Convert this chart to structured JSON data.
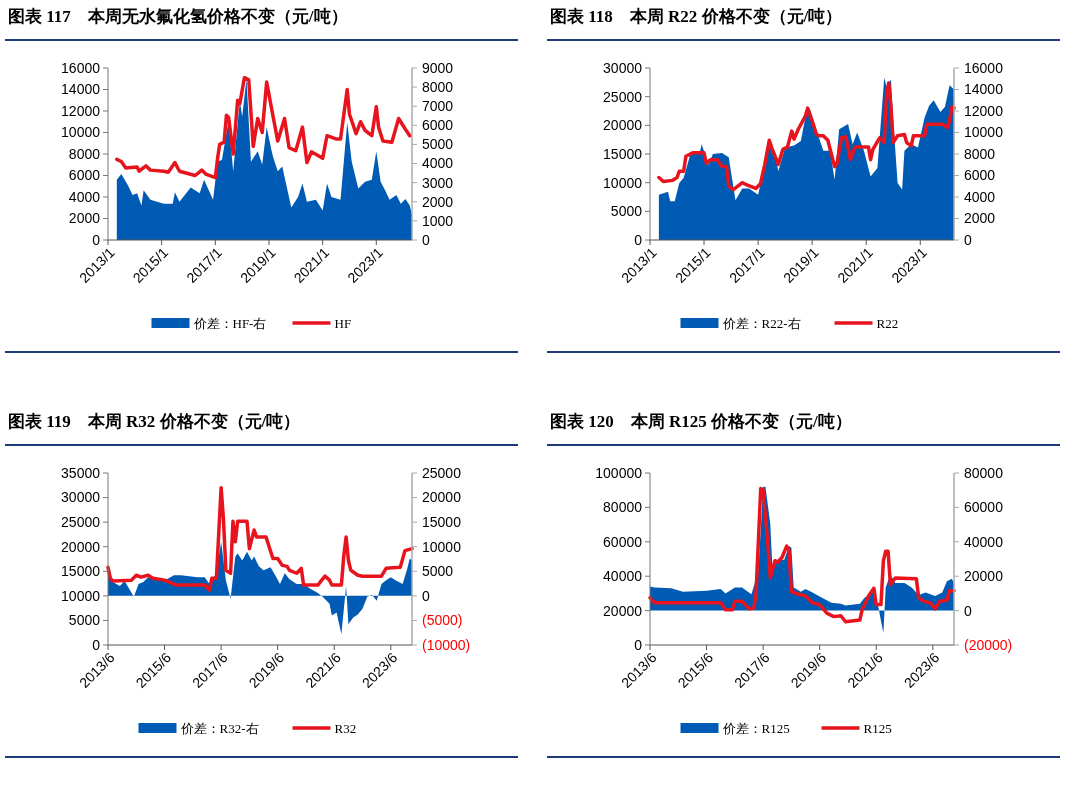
{
  "chart_data": [
    {
      "type": "line",
      "title": "图表 117　本周无水氟化氢价格不变（元/吨）",
      "legend": "bottom",
      "xlim": [
        "2013-01",
        "2024-05"
      ],
      "xticks": [
        {
          "value": "2013-01",
          "label": "2013/1"
        },
        {
          "value": "2015-01",
          "label": "2015/1"
        },
        {
          "value": "2017-01",
          "label": "2017/1"
        },
        {
          "value": "2019-01",
          "label": "2019/1"
        },
        {
          "value": "2021-01",
          "label": "2021/1"
        },
        {
          "value": "2023-01",
          "label": "2023/1"
        }
      ],
      "ylim": [
        0,
        16000
      ],
      "yticks": [
        0,
        2000,
        4000,
        6000,
        8000,
        10000,
        12000,
        14000,
        16000
      ],
      "y2lim": [
        0,
        9000
      ],
      "y2ticks": [
        0,
        1000,
        2000,
        3000,
        4000,
        5000,
        6000,
        7000,
        8000,
        9000
      ],
      "series": [
        {
          "name": "价差：HF-右",
          "type": "area",
          "axis": "y2",
          "color": "#005bb5",
          "x": [
            "2013-05",
            "2013-07",
            "2013-10",
            "2013-12",
            "2014-02",
            "2014-04",
            "2014-05",
            "2014-08",
            "2015-02",
            "2015-06",
            "2015-07",
            "2015-09",
            "2016-02",
            "2016-06",
            "2016-08",
            "2016-12",
            "2017-02",
            "2017-04",
            "2017-07",
            "2017-09",
            "2017-12",
            "2018-01",
            "2018-03",
            "2018-05",
            "2018-08",
            "2018-10",
            "2018-12",
            "2019-02",
            "2019-03",
            "2019-05",
            "2019-07",
            "2019-11",
            "2020-02",
            "2020-04",
            "2020-06",
            "2020-10",
            "2021-01",
            "2021-03",
            "2021-05",
            "2021-09",
            "2021-12",
            "2022-02",
            "2022-05",
            "2022-08",
            "2022-11",
            "2023-01",
            "2023-03",
            "2023-05",
            "2023-07",
            "2023-10",
            "2023-12",
            "2024-02",
            "2024-04",
            "2024-05"
          ],
          "values": [
            3150,
            3450,
            2850,
            2350,
            2450,
            1800,
            2600,
            2100,
            1900,
            1900,
            2500,
            2000,
            2750,
            2450,
            3150,
            2100,
            4100,
            4200,
            6250,
            3600,
            7300,
            6450,
            8400,
            4100,
            4650,
            3950,
            5900,
            4750,
            4300,
            3600,
            3850,
            1700,
            2250,
            2950,
            2000,
            2100,
            1550,
            2950,
            2250,
            2100,
            6150,
            4100,
            2700,
            3050,
            3150,
            4650,
            3050,
            2600,
            2100,
            2350,
            1900,
            2150,
            1800,
            1300
          ]
        },
        {
          "name": "HF",
          "type": "line",
          "color": "#e8141d",
          "x": [
            "2013-05",
            "2013-07",
            "2013-09",
            "2014-02",
            "2014-03",
            "2014-06",
            "2014-08",
            "2015-02",
            "2015-04",
            "2015-07",
            "2015-09",
            "2016-04",
            "2016-07",
            "2016-09",
            "2017-01",
            "2017-02",
            "2017-03",
            "2017-05",
            "2017-06",
            "2017-07",
            "2017-09",
            "2017-11",
            "2017-12",
            "2018-02",
            "2018-04",
            "2018-06",
            "2018-08",
            "2018-10",
            "2018-12",
            "2019-02",
            "2019-05",
            "2019-08",
            "2019-10",
            "2020-01",
            "2020-04",
            "2020-06",
            "2020-08",
            "2021-01",
            "2021-03",
            "2021-07",
            "2021-09",
            "2021-12",
            "2022-01",
            "2022-04",
            "2022-06",
            "2022-08",
            "2022-11",
            "2023-01",
            "2023-02",
            "2023-04",
            "2023-08",
            "2023-11",
            "2024-02",
            "2024-04"
          ],
          "values": [
            7500,
            7300,
            6700,
            6800,
            6400,
            6900,
            6500,
            6400,
            6300,
            7200,
            6400,
            6000,
            6500,
            6100,
            5800,
            7600,
            8900,
            9100,
            11600,
            11400,
            8000,
            13000,
            12700,
            15100,
            14900,
            8700,
            11300,
            10000,
            14700,
            12400,
            9200,
            11300,
            8600,
            8300,
            10500,
            7200,
            8200,
            7600,
            9700,
            9400,
            9400,
            14000,
            11700,
            9900,
            11000,
            10200,
            9700,
            12400,
            10500,
            9200,
            9100,
            11300,
            10300,
            9700
          ]
        }
      ]
    },
    {
      "type": "line",
      "title": "图表 118　本周 R22 价格不变（元/吨）",
      "legend": "bottom",
      "xlim": [
        "2013-01",
        "2024-04"
      ],
      "xticks": [
        {
          "value": "2013-01",
          "label": "2013/1"
        },
        {
          "value": "2015-01",
          "label": "2015/1"
        },
        {
          "value": "2017-01",
          "label": "2017/1"
        },
        {
          "value": "2019-01",
          "label": "2019/1"
        },
        {
          "value": "2021-01",
          "label": "2021/1"
        },
        {
          "value": "2023-01",
          "label": "2023/1"
        }
      ],
      "ylim": [
        0,
        30000
      ],
      "yticks": [
        0,
        5000,
        10000,
        15000,
        20000,
        25000,
        30000
      ],
      "y2lim": [
        0,
        16000
      ],
      "y2ticks": [
        0,
        2000,
        4000,
        6000,
        8000,
        10000,
        12000,
        14000,
        16000
      ],
      "series": [
        {
          "name": "价差：R22-右",
          "type": "area",
          "axis": "y2",
          "color": "#005bb5",
          "x": [
            "2013-05",
            "2013-09",
            "2013-10",
            "2013-12",
            "2014-02",
            "2014-04",
            "2014-07",
            "2014-11",
            "2014-12",
            "2015-03",
            "2015-05",
            "2015-09",
            "2015-12",
            "2016-03",
            "2016-06",
            "2016-09",
            "2017-01",
            "2017-04",
            "2017-06",
            "2017-09",
            "2017-10",
            "2018-01",
            "2018-05",
            "2018-08",
            "2018-10",
            "2018-12",
            "2019-03",
            "2019-06",
            "2019-09",
            "2019-11",
            "2020-01",
            "2020-05",
            "2020-07",
            "2020-09",
            "2020-12",
            "2021-03",
            "2021-06",
            "2021-09",
            "2021-10",
            "2021-12",
            "2022-01",
            "2022-03",
            "2022-05",
            "2022-06",
            "2022-09",
            "2022-12",
            "2023-03",
            "2023-05",
            "2023-07",
            "2023-10",
            "2023-12",
            "2024-02",
            "2024-04"
          ],
          "values": [
            4200,
            4500,
            3600,
            3600,
            5300,
            5800,
            8000,
            8000,
            8900,
            7000,
            8000,
            8100,
            7700,
            3700,
            4800,
            4800,
            4200,
            7000,
            9200,
            7500,
            6400,
            8600,
            8800,
            9200,
            11400,
            12200,
            10200,
            8300,
            8300,
            5600,
            10300,
            10800,
            8900,
            10000,
            8300,
            5900,
            6700,
            15100,
            14300,
            14900,
            11100,
            5300,
            4700,
            8300,
            8900,
            8600,
            11400,
            12500,
            13000,
            11900,
            12400,
            14400,
            14000
          ]
        },
        {
          "name": "R22",
          "type": "line",
          "color": "#e8141d",
          "x": [
            "2013-05",
            "2013-07",
            "2013-11",
            "2014-01",
            "2014-02",
            "2014-04",
            "2014-05",
            "2014-08",
            "2015-01",
            "2015-02",
            "2015-04",
            "2015-07",
            "2015-09",
            "2015-11",
            "2015-12",
            "2016-02",
            "2016-06",
            "2016-08",
            "2016-12",
            "2017-02",
            "2017-04",
            "2017-06",
            "2017-07",
            "2017-10",
            "2017-12",
            "2018-02",
            "2018-04",
            "2018-05",
            "2018-07",
            "2018-10",
            "2018-11",
            "2019-01",
            "2019-03",
            "2019-04",
            "2019-06",
            "2019-08",
            "2019-11",
            "2019-12",
            "2020-02",
            "2020-04",
            "2020-06",
            "2020-08",
            "2020-11",
            "2021-02",
            "2021-03",
            "2021-04",
            "2021-07",
            "2021-09",
            "2021-10",
            "2021-11",
            "2021-12",
            "2022-01",
            "2022-03",
            "2022-06",
            "2022-07",
            "2022-09",
            "2022-10",
            "2023-03",
            "2023-04",
            "2023-11",
            "2024-01",
            "2024-02",
            "2024-03",
            "2024-04"
          ],
          "values": [
            10900,
            10200,
            10400,
            10900,
            12000,
            12000,
            14600,
            15200,
            15200,
            13400,
            14000,
            14000,
            12800,
            12800,
            9400,
            8800,
            10000,
            9600,
            9000,
            9800,
            13200,
            17400,
            16200,
            13200,
            15800,
            16200,
            19000,
            17600,
            19400,
            21600,
            23000,
            20800,
            18400,
            18200,
            18200,
            17400,
            12800,
            13200,
            17800,
            18000,
            14000,
            16200,
            16200,
            16200,
            14000,
            15800,
            17800,
            17000,
            25000,
            27400,
            23200,
            17000,
            18200,
            18400,
            17000,
            16400,
            18200,
            18200,
            20200,
            20200,
            19600,
            20800,
            23200,
            23000
          ]
        }
      ]
    },
    {
      "type": "line",
      "title": "图表 119　本周 R32 价格不变（元/吨）",
      "legend": "bottom",
      "xlim": [
        "2013-06",
        "2024-03"
      ],
      "xticks": [
        {
          "value": "2013-06",
          "label": "2013/6"
        },
        {
          "value": "2015-06",
          "label": "2015/6"
        },
        {
          "value": "2017-06",
          "label": "2017/6"
        },
        {
          "value": "2019-06",
          "label": "2019/6"
        },
        {
          "value": "2021-06",
          "label": "2021/6"
        },
        {
          "value": "2023-06",
          "label": "2023/6"
        }
      ],
      "ylim": [
        0,
        35000
      ],
      "yticks": [
        0,
        5000,
        10000,
        15000,
        20000,
        25000,
        30000,
        35000
      ],
      "y2lim": [
        -10000,
        25000
      ],
      "y2ticks": [
        {
          "value": -10000,
          "label": "(10000)"
        },
        {
          "value": -5000,
          "label": "(5000)"
        },
        0,
        5000,
        10000,
        15000,
        20000,
        25000
      ],
      "series": [
        {
          "name": "价差：R32-右",
          "type": "area",
          "axis": "y2",
          "color": "#005bb5",
          "x": [
            "2013-06",
            "2013-08",
            "2013-11",
            "2014-01",
            "2014-05",
            "2014-07",
            "2014-09",
            "2014-11",
            "2015-03",
            "2015-07",
            "2015-10",
            "2016-01",
            "2016-08",
            "2016-11",
            "2017-01",
            "2017-04",
            "2017-06",
            "2017-08",
            "2017-10",
            "2017-12",
            "2018-01",
            "2018-03",
            "2018-05",
            "2018-07",
            "2018-08",
            "2018-10",
            "2018-12",
            "2019-03",
            "2019-05",
            "2019-07",
            "2019-09",
            "2019-11",
            "2020-02",
            "2020-05",
            "2020-08",
            "2020-11",
            "2021-01",
            "2021-04",
            "2021-05",
            "2021-07",
            "2021-09",
            "2021-10",
            "2021-11",
            "2021-12",
            "2022-02",
            "2022-04",
            "2022-06",
            "2022-08",
            "2022-10",
            "2022-12",
            "2023-02",
            "2023-04",
            "2023-06",
            "2023-08",
            "2023-11",
            "2024-01",
            "2024-02",
            "2024-03"
          ],
          "values": [
            5200,
            2800,
            2000,
            3000,
            -200,
            2400,
            2800,
            3800,
            3400,
            3400,
            4200,
            4200,
            3800,
            3800,
            2400,
            4600,
            11000,
            3200,
            -600,
            8000,
            8600,
            7200,
            9000,
            7200,
            8000,
            6000,
            5200,
            5800,
            4200,
            2400,
            4600,
            3400,
            2400,
            2400,
            1400,
            600,
            -200,
            -1600,
            -4000,
            -3400,
            -7800,
            -3000,
            2000,
            -5800,
            -4400,
            -3800,
            -2600,
            -200,
            200,
            -1000,
            2400,
            3200,
            3800,
            3200,
            2400,
            5600,
            7600,
            7200
          ]
        },
        {
          "name": "R32",
          "type": "line",
          "color": "#e8141d",
          "x": [
            "2013-06",
            "2013-07",
            "2013-08",
            "2014-04",
            "2014-06",
            "2014-08",
            "2014-11",
            "2015-01",
            "2015-06",
            "2015-11",
            "2016-04",
            "2016-11",
            "2017-01",
            "2017-02",
            "2017-04",
            "2017-06",
            "2017-07",
            "2017-08",
            "2017-10",
            "2017-11",
            "2017-12",
            "2018-01",
            "2018-05",
            "2018-06",
            "2018-08",
            "2018-09",
            "2019-01",
            "2019-04",
            "2019-06",
            "2019-08",
            "2019-10",
            "2019-11",
            "2020-02",
            "2020-04",
            "2020-05",
            "2020-11",
            "2020-12",
            "2021-02",
            "2021-04",
            "2021-05",
            "2021-09",
            "2021-10",
            "2021-11",
            "2021-12",
            "2022-01",
            "2022-04",
            "2022-06",
            "2023-02",
            "2023-04",
            "2023-10",
            "2023-12",
            "2024-03"
          ],
          "values": [
            15800,
            13600,
            13000,
            13200,
            14200,
            13800,
            14200,
            13600,
            13200,
            12200,
            12200,
            12200,
            11200,
            13600,
            13600,
            32000,
            25600,
            15200,
            14600,
            25200,
            21000,
            25200,
            25200,
            19600,
            23400,
            22000,
            22000,
            17600,
            17600,
            16200,
            16000,
            15200,
            14600,
            15600,
            12200,
            12200,
            12800,
            14000,
            13200,
            12200,
            12200,
            18000,
            22000,
            17200,
            15200,
            14200,
            14000,
            14000,
            15600,
            15800,
            19200,
            19600
          ]
        }
      ]
    },
    {
      "type": "line",
      "title": "图表 120　本周 R125 价格不变（元/吨）",
      "legend": "bottom",
      "xlim": [
        "2013-06",
        "2024-03"
      ],
      "xticks": [
        {
          "value": "2013-06",
          "label": "2013/6"
        },
        {
          "value": "2015-06",
          "label": "2015/6"
        },
        {
          "value": "2017-06",
          "label": "2017/6"
        },
        {
          "value": "2019-06",
          "label": "2019/6"
        },
        {
          "value": "2021-06",
          "label": "2021/6"
        },
        {
          "value": "2023-06",
          "label": "2023/6"
        }
      ],
      "ylim": [
        0,
        100000
      ],
      "yticks": [
        0,
        20000,
        40000,
        60000,
        80000,
        100000
      ],
      "y2lim": [
        -20000,
        80000
      ],
      "y2ticks": [
        {
          "value": -20000,
          "label": "(20000)"
        },
        0,
        20000,
        40000,
        60000,
        80000
      ],
      "series": [
        {
          "name": "价差：R125",
          "type": "area",
          "axis": "y2",
          "color": "#005bb5",
          "x": [
            "2013-06",
            "2013-08",
            "2014-03",
            "2014-08",
            "2015-06",
            "2015-12",
            "2016-02",
            "2016-06",
            "2016-09",
            "2017-01",
            "2017-04",
            "2017-06",
            "2017-07",
            "2017-09",
            "2017-10",
            "2017-12",
            "2018-03",
            "2018-05",
            "2018-06",
            "2018-07",
            "2018-10",
            "2018-12",
            "2019-03",
            "2019-07",
            "2019-11",
            "2020-03",
            "2020-05",
            "2020-11",
            "2021-01",
            "2021-05",
            "2021-07",
            "2021-08",
            "2021-09",
            "2021-10",
            "2021-12",
            "2022-02",
            "2022-06",
            "2022-09",
            "2022-12",
            "2023-03",
            "2023-07",
            "2023-10",
            "2023-12",
            "2024-02",
            "2024-03"
          ],
          "values": [
            14000,
            13500,
            13000,
            11000,
            11500,
            12500,
            10000,
            13500,
            13500,
            9500,
            23000,
            72000,
            72000,
            50500,
            23000,
            29500,
            29500,
            37500,
            36500,
            13500,
            11000,
            12500,
            10500,
            7500,
            4500,
            4000,
            3000,
            4000,
            7500,
            11000,
            1500,
            -6000,
            -13000,
            13500,
            21000,
            16000,
            16000,
            13500,
            9000,
            10500,
            8500,
            10500,
            17000,
            18500,
            16000
          ]
        },
        {
          "name": "R125",
          "type": "line",
          "color": "#e8141d",
          "x": [
            "2013-06",
            "2013-08",
            "2014-03",
            "2015-12",
            "2016-02",
            "2016-05",
            "2016-06",
            "2016-09",
            "2016-12",
            "2017-02",
            "2017-03",
            "2017-05",
            "2017-06",
            "2017-08",
            "2017-09",
            "2017-11",
            "2017-12",
            "2018-02",
            "2018-04",
            "2018-05",
            "2018-06",
            "2018-09",
            "2018-12",
            "2019-03",
            "2019-06",
            "2019-09",
            "2019-12",
            "2020-03",
            "2020-05",
            "2020-11",
            "2020-12",
            "2021-03",
            "2021-05",
            "2021-06",
            "2021-08",
            "2021-09",
            "2021-10",
            "2021-11",
            "2021-12",
            "2022-02",
            "2022-11",
            "2022-12",
            "2023-02",
            "2023-05",
            "2023-07",
            "2023-09",
            "2023-12",
            "2024-01",
            "2024-03"
          ],
          "values": [
            27500,
            24500,
            24500,
            24500,
            20500,
            20500,
            25500,
            25500,
            21000,
            21500,
            29500,
            91000,
            90000,
            58500,
            39000,
            49000,
            48000,
            51000,
            57500,
            55000,
            31000,
            29500,
            28500,
            24500,
            23500,
            18500,
            16500,
            17000,
            13500,
            14500,
            20500,
            29000,
            33000,
            23500,
            23500,
            49000,
            54500,
            54500,
            35000,
            39000,
            38500,
            27500,
            25500,
            24500,
            21000,
            25500,
            26000,
            31500,
            31500
          ]
        }
      ]
    }
  ]
}
